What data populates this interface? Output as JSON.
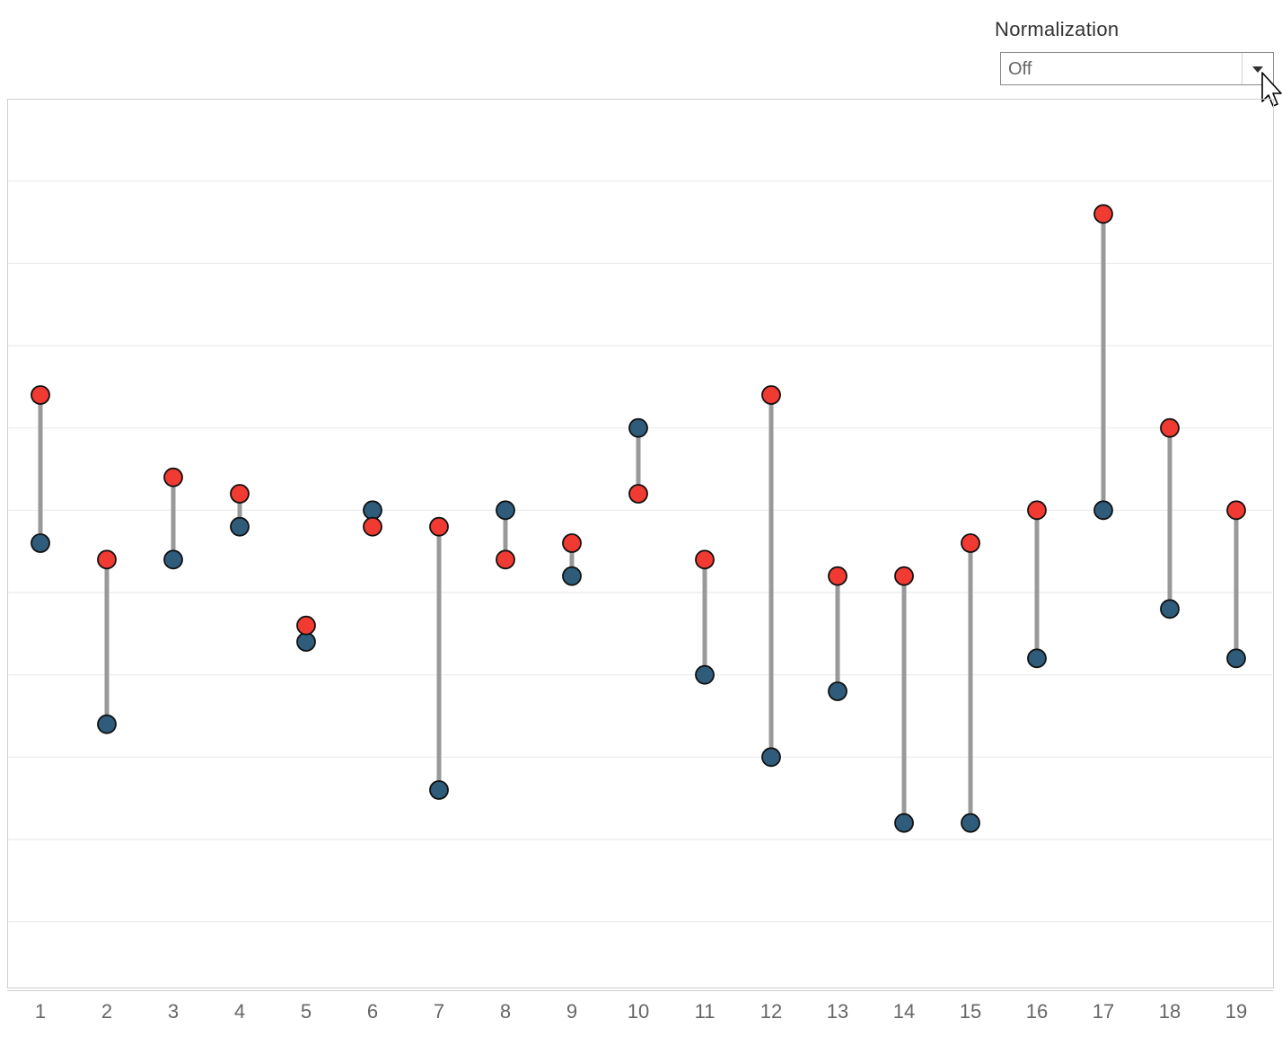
{
  "filter": {
    "label": "Normalization",
    "value": "Off"
  },
  "colors": {
    "series_red": "#f03a32",
    "series_blue": "#2e5c7a",
    "connector": "#999999",
    "gridline": "#ebebeb",
    "frame": "#cfcfcf",
    "tick_label": "#666666"
  },
  "icons": {
    "dropdown": "chevron-down-icon",
    "cursor": "mouse-pointer-icon"
  },
  "chart_data": {
    "type": "scatter",
    "title": "",
    "xlabel": "",
    "ylabel": "",
    "categories": [
      "1",
      "2",
      "3",
      "4",
      "5",
      "6",
      "7",
      "8",
      "9",
      "10",
      "11",
      "12",
      "13",
      "14",
      "15",
      "16",
      "17",
      "18",
      "19"
    ],
    "series": [
      {
        "values": [
          10,
          5,
          7.5,
          7,
          3,
          6,
          6,
          5,
          5.5,
          7,
          5,
          10,
          4.5,
          4.5,
          5.5,
          6.5,
          15.5,
          9,
          6.5
        ]
      },
      {
        "values": [
          5.5,
          0,
          5,
          6,
          2.5,
          6.5,
          -2,
          6.5,
          4.5,
          9,
          1.5,
          -1,
          1,
          -3,
          -3,
          2,
          6.5,
          3.5,
          2
        ]
      }
    ],
    "ylim": [
      -8,
      19
    ],
    "y_gridlines": [
      -6,
      -3.5,
      -1,
      1.5,
      4,
      6.5,
      9,
      11.5,
      14,
      16.5
    ],
    "grid": true,
    "y_tick_labels": false,
    "legend": "none",
    "connector_lines": true
  }
}
